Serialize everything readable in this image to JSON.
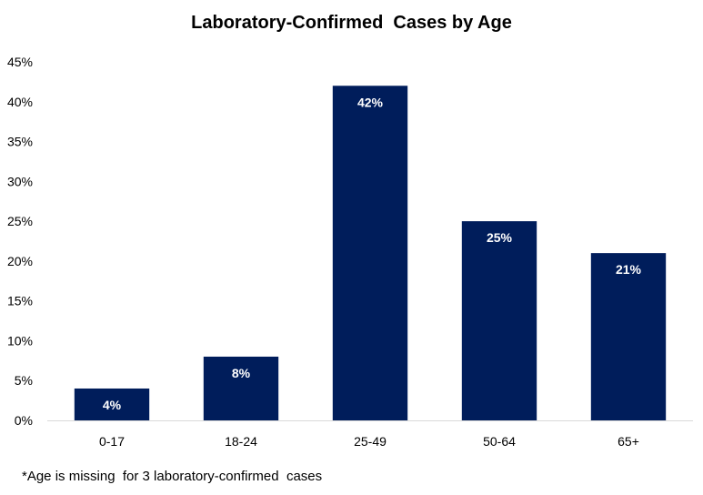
{
  "chart_data": {
    "type": "bar",
    "title": "Laboratory-Confirmed  Cases by Age",
    "categories": [
      "0-17",
      "18-24",
      "25-49",
      "50-64",
      "65+"
    ],
    "values": [
      4,
      8,
      42,
      25,
      21
    ],
    "data_labels": [
      "4%",
      "8%",
      "42%",
      "25%",
      "21%"
    ],
    "ylim": [
      0,
      45
    ],
    "yticks": [
      "0%",
      "5%",
      "10%",
      "15%",
      "20%",
      "25%",
      "30%",
      "35%",
      "40%",
      "45%"
    ],
    "xlabel": "",
    "ylabel": "",
    "grid": false,
    "bar_color": "#001d5b",
    "label_inside_color": "#ffffff",
    "label_outside_color": "#000000"
  },
  "footnote": "*Age is missing  for 3 laboratory-confirmed  cases"
}
